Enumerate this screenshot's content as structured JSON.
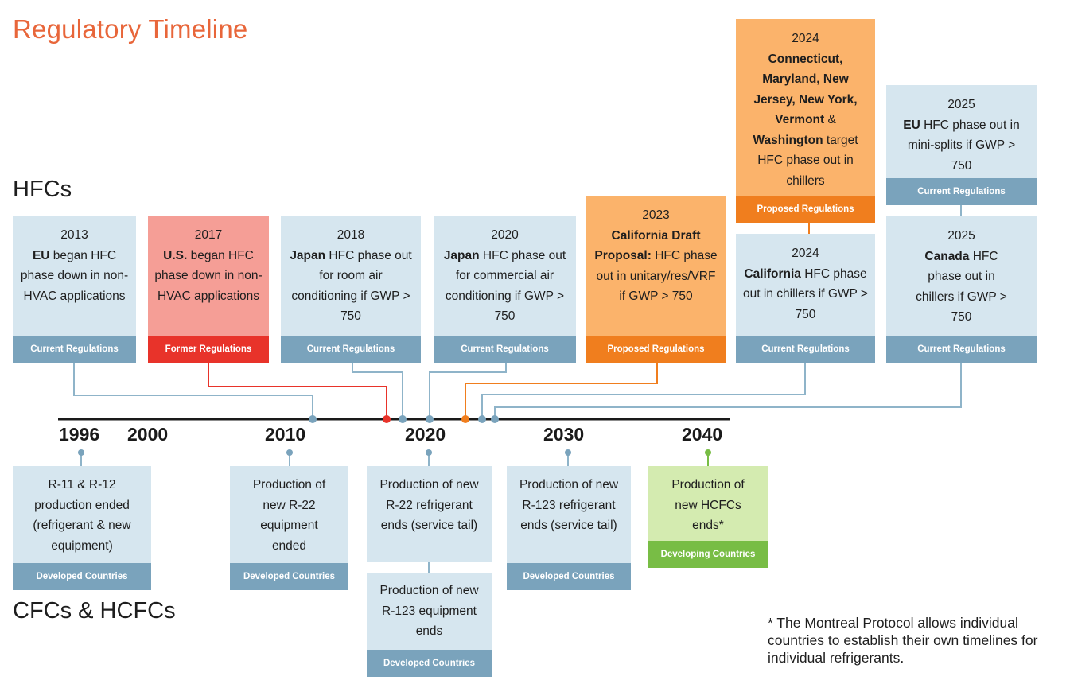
{
  "title": "Regulatory Timeline",
  "sections": {
    "hfcs": "HFCs",
    "cfcs": "CFCs & HCFCs"
  },
  "colors": {
    "title": "#e8663a",
    "current": "#7aa3bc",
    "current_bg": "#d6e6ef",
    "former": "#e8332a",
    "former_bg": "#f59e96",
    "proposed": "#f07e1e",
    "proposed_bg": "#fbb36b",
    "developing": "#78bd45",
    "developing_bg": "#d4ebb0"
  },
  "axis": {
    "years": [
      "1996",
      "2000",
      "2010",
      "2020",
      "2030",
      "2040"
    ]
  },
  "hfc_events": [
    {
      "year": "2013",
      "bold": "EU",
      "text": " began HFC phase down in non-HVAC applications",
      "tag": "Current Regulations"
    },
    {
      "year": "2017",
      "bold": "U.S.",
      "text": " began HFC phase down in non-HVAC applications",
      "tag": "Former Regulations"
    },
    {
      "year": "2018",
      "bold": "Japan",
      "text": " HFC phase out for room air conditioning if GWP > 750",
      "tag": "Current Regulations"
    },
    {
      "year": "2020",
      "bold": "Japan",
      "text": " HFC phase out for commercial air conditioning if GWP > 750",
      "tag": "Current Regulations"
    },
    {
      "year": "2023",
      "bold": "California Draft Proposal:",
      "text": " HFC phase out in unitary/res/VRF if GWP > 750",
      "tag": "Proposed Regulations"
    },
    {
      "year": "2024",
      "bold": "California",
      "text": " HFC phase out in chillers if GWP > 750",
      "tag": "Current Regulations"
    },
    {
      "year": "2024",
      "bold": "Connecticut, Maryland, New Jersey, New York, Vermont",
      "mid": " & ",
      "bold2": "Washington",
      "text": " target HFC phase out in chillers",
      "tag": "Proposed Regulations"
    },
    {
      "year": "2025",
      "bold": "Canada",
      "text": " HFC phase out in chillers if GWP > 750",
      "tag": "Current Regulations"
    },
    {
      "year": "2025",
      "bold": "EU",
      "text": " HFC phase out in mini-splits if GWP > 750",
      "tag": "Current Regulations"
    }
  ],
  "cfc_events": [
    {
      "text": "R-11 & R-12 production ended (refrigerant & new equipment)",
      "tag": "Developed Countries"
    },
    {
      "text": "Production of new R-22 equipment ended",
      "tag": "Developed Countries"
    },
    {
      "text": "Production of new R-22 refrigerant ends (service tail)",
      "tag": ""
    },
    {
      "text": "Production of new R-123 equipment ends",
      "tag": "Developed Countries"
    },
    {
      "text": "Production of new R-123 refrigerant ends (service tail)",
      "tag": "Developed Countries"
    },
    {
      "text": "Production of new HCFCs ends*",
      "tag": "Developing Countries"
    }
  ],
  "footnote": "* The Montreal Protocol allows individual countries to establish their own timelines for individual refrigerants."
}
